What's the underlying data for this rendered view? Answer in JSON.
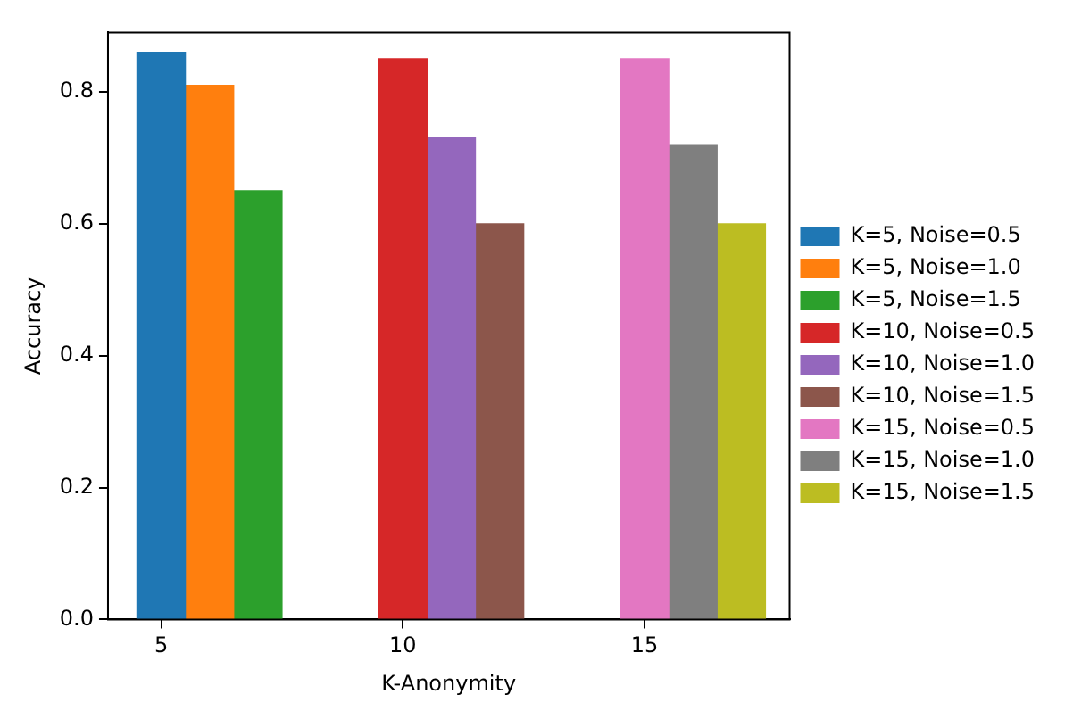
{
  "chart_data": {
    "type": "bar",
    "xlabel": "K-Anonymity",
    "ylabel": "Accuracy",
    "xlim": [
      3.9,
      18
    ],
    "xticks": [
      5,
      10,
      15
    ],
    "ylim": [
      0,
      0.89
    ],
    "yticks": [
      {
        "value": 0,
        "label": "0.0"
      },
      {
        "value": 0.2,
        "label": "0.2"
      },
      {
        "value": 0.4,
        "label": "0.4"
      },
      {
        "value": 0.6,
        "label": "0.6"
      },
      {
        "value": 0.8,
        "label": "0.8"
      }
    ],
    "grid": false,
    "legend": "right",
    "series": [
      {
        "name": "K=5, Noise=0.5",
        "color": "#1f77b4",
        "x": [
          5
        ],
        "values": [
          0.86
        ]
      },
      {
        "name": "K=5, Noise=1.0",
        "color": "#ff7f0e",
        "x": [
          6
        ],
        "values": [
          0.81
        ]
      },
      {
        "name": "K=5, Noise=1.5",
        "color": "#2ca02c",
        "x": [
          7
        ],
        "values": [
          0.65
        ]
      },
      {
        "name": "K=10, Noise=0.5",
        "color": "#d62728",
        "x": [
          10
        ],
        "values": [
          0.85
        ]
      },
      {
        "name": "K=10, Noise=1.0",
        "color": "#9467bd",
        "x": [
          11
        ],
        "values": [
          0.73
        ]
      },
      {
        "name": "K=10, Noise=1.5",
        "color": "#8c564b",
        "x": [
          12
        ],
        "values": [
          0.6
        ]
      },
      {
        "name": "K=15, Noise=0.5",
        "color": "#e377c2",
        "x": [
          15
        ],
        "values": [
          0.85
        ]
      },
      {
        "name": "K=15, Noise=1.0",
        "color": "#7f7f7f",
        "x": [
          16
        ],
        "values": [
          0.72
        ]
      },
      {
        "name": "K=15, Noise=1.5",
        "color": "#bcbd22",
        "x": [
          17
        ],
        "values": [
          0.6
        ]
      }
    ]
  }
}
